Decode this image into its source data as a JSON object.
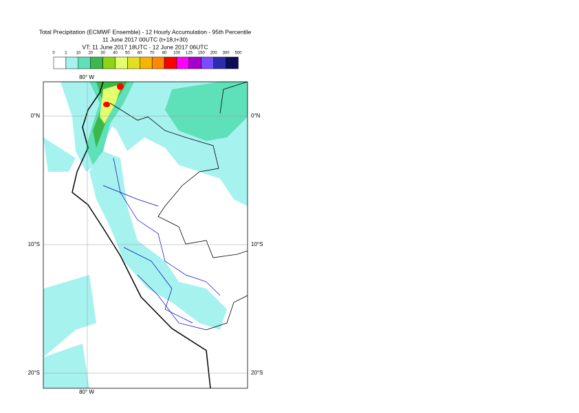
{
  "header": {
    "title": "Total Precipitation (ECMWF Ensemble) - 12 Hourly Accumulation - 95th Percentile",
    "subtitle": "11 June 2017 00UTC (t+18,t+30)",
    "valid_time": "VT: 11 June 2017 18UTC - 12 June 2017 06UTC"
  },
  "legend": {
    "levels": [
      "0",
      "1",
      "10",
      "20",
      "30",
      "40",
      "50",
      "60",
      "70",
      "80",
      "100",
      "125",
      "150",
      "200",
      "300",
      "500"
    ],
    "colors": [
      "#ffffff",
      "#a6f2ee",
      "#5ee0b8",
      "#3cb84a",
      "#8fd414",
      "#e4ff6e",
      "#e0e020",
      "#f4b400",
      "#ff8800",
      "#ff0000",
      "#ff00ff",
      "#a600cc",
      "#7a4cff",
      "#2c2cb0",
      "#0c0c5a"
    ]
  },
  "map": {
    "lon_label": "80° W",
    "lat_labels": [
      "0°N",
      "10°S",
      "20°S"
    ]
  }
}
